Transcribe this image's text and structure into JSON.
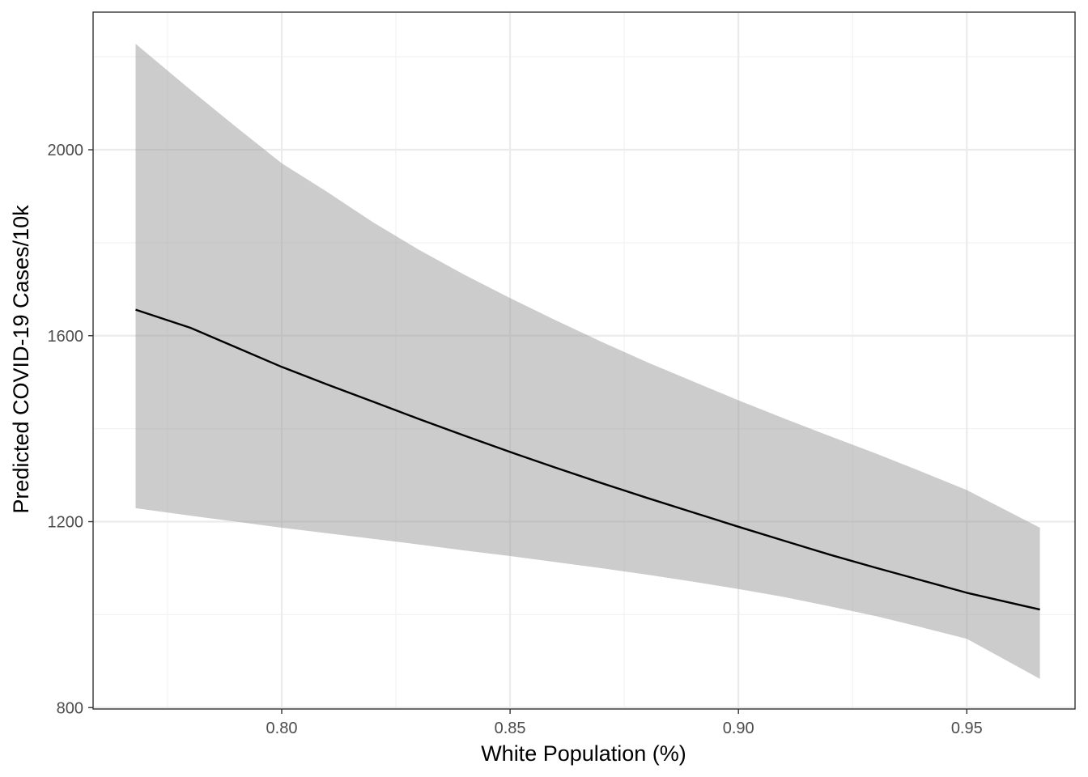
{
  "chart_data": {
    "type": "line",
    "title": "",
    "xlabel": "White Population (%)",
    "ylabel": "Predicted COVID-19 Cases/10k",
    "xlim": [
      0.7587,
      0.9737
    ],
    "ylim": [
      797,
      2296
    ],
    "x_ticks": [
      0.8,
      0.85,
      0.9,
      0.95
    ],
    "x_tick_labels": [
      "0.80",
      "0.85",
      "0.90",
      "0.95"
    ],
    "y_ticks": [
      800,
      1200,
      1600,
      2000
    ],
    "y_tick_labels": [
      "800",
      "1200",
      "1600",
      "2000"
    ],
    "x_minor_ticks": [
      0.775,
      0.825,
      0.875,
      0.925
    ],
    "y_minor_ticks": [
      1000,
      1400,
      1800,
      2200
    ],
    "grid": true,
    "legend": "none",
    "series": [
      {
        "name": "prediction",
        "x": [
          0.768,
          0.78,
          0.79,
          0.8,
          0.81,
          0.82,
          0.83,
          0.84,
          0.85,
          0.86,
          0.87,
          0.88,
          0.89,
          0.9,
          0.91,
          0.92,
          0.93,
          0.94,
          0.95,
          0.966
        ],
        "y": [
          1656,
          1617,
          1575,
          1533,
          1495,
          1458,
          1421,
          1385,
          1350,
          1316,
          1283,
          1251,
          1220,
          1189,
          1159,
          1129,
          1101,
          1074,
          1047,
          1011
        ],
        "lower": [
          1229,
          1213,
          1200,
          1187,
          1175,
          1163,
          1151,
          1138,
          1126,
          1113,
          1100,
          1086,
          1071,
          1055,
          1038,
          1018,
          997,
          973,
          948,
          862
        ],
        "upper": [
          2228,
          2129,
          2049,
          1971,
          1909,
          1844,
          1785,
          1731,
          1681,
          1633,
          1587,
          1543,
          1502,
          1461,
          1422,
          1384,
          1347,
          1308,
          1268,
          1187
        ]
      }
    ],
    "colors": {
      "line": "#000000",
      "ribbon": "#999999",
      "grid_major": "#ebebeb",
      "grid_minor": "#f2f2f2",
      "panel_border": "#333333",
      "tick_label": "#4d4d4d"
    }
  }
}
